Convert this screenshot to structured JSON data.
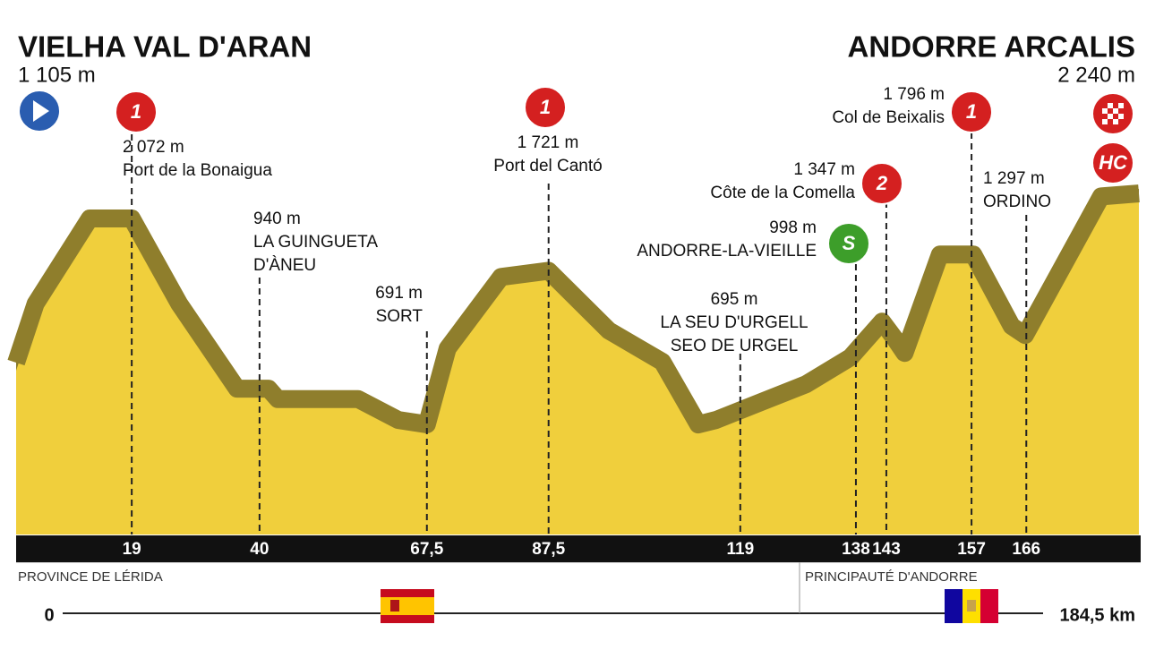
{
  "header": {
    "start": {
      "name": "VIELHA VAL D'ARAN",
      "elevation": "1 105 m"
    },
    "finish": {
      "name": "ANDORRE ARCALIS",
      "elevation": "2 240 m",
      "badge": "HC"
    }
  },
  "chart_data": {
    "type": "profile",
    "color": "#f0cf3c",
    "x": [
      0,
      3.2,
      12.1,
      19,
      26.8,
      36.3,
      41.5,
      43,
      50.3,
      56.2,
      62.8,
      67.5,
      70.9,
      79.7,
      87.5,
      97.4,
      106.2,
      112.1,
      115,
      122.4,
      129.8,
      137.1,
      142.3,
      144.5,
      146,
      151.8,
      157.3,
      163.6,
      165.8,
      178.3,
      184.5
    ],
    "values": [
      1105,
      1500,
      2072,
      2072,
      1500,
      930,
      930,
      860,
      860,
      860,
      720,
      691,
      1200,
      1680,
      1721,
      1320,
      1110,
      690,
      720,
      840,
      960,
      1140,
      1380,
      1260,
      1170,
      1830,
      1830,
      1350,
      1290,
      2220,
      2240
    ],
    "xlim": [
      0,
      184.5
    ],
    "xticks": [
      0,
      {
        "value": 184.5,
        "label": "184,5 km"
      }
    ],
    "waypoints": [
      {
        "km": 19,
        "elevation": "2 072 m",
        "name": [
          "Port de la Bonaigua"
        ],
        "badge": "1"
      },
      {
        "km": 40,
        "elevation": "940 m",
        "name": [
          "LA GUINGUETA",
          "D'ÀNEU"
        ]
      },
      {
        "km": {
          "value": 67.5,
          "label": "67,5"
        },
        "elevation": "691 m",
        "name": [
          "SORT"
        ]
      },
      {
        "km": {
          "value": 87.5,
          "label": "87,5"
        },
        "elevation": "1 721 m",
        "name": [
          "Port del Cantó"
        ],
        "badge": "1"
      },
      {
        "km": 119,
        "elevation": "695 m",
        "name": [
          "LA SEU D'URGELL",
          "SEO DE URGEL"
        ]
      },
      {
        "km": 138,
        "elevation": "998 m",
        "name": [
          "ANDORRE-LA-VIEILLE"
        ],
        "badge": "S"
      },
      {
        "km": 143,
        "elevation": "1 347 m",
        "name": [
          "Côte de la Comella"
        ],
        "badge": "2"
      },
      {
        "km": 157,
        "elevation": "1 796 m",
        "name": [
          "Col de Beixalis"
        ],
        "badge": "1"
      },
      {
        "km": 166,
        "elevation": "1 297 m",
        "name": [
          "ORDINO"
        ]
      }
    ],
    "regions": [
      "PROVINCE DE LÉRIDA",
      "PRINCIPAUTÉ D'ANDORRE"
    ]
  }
}
